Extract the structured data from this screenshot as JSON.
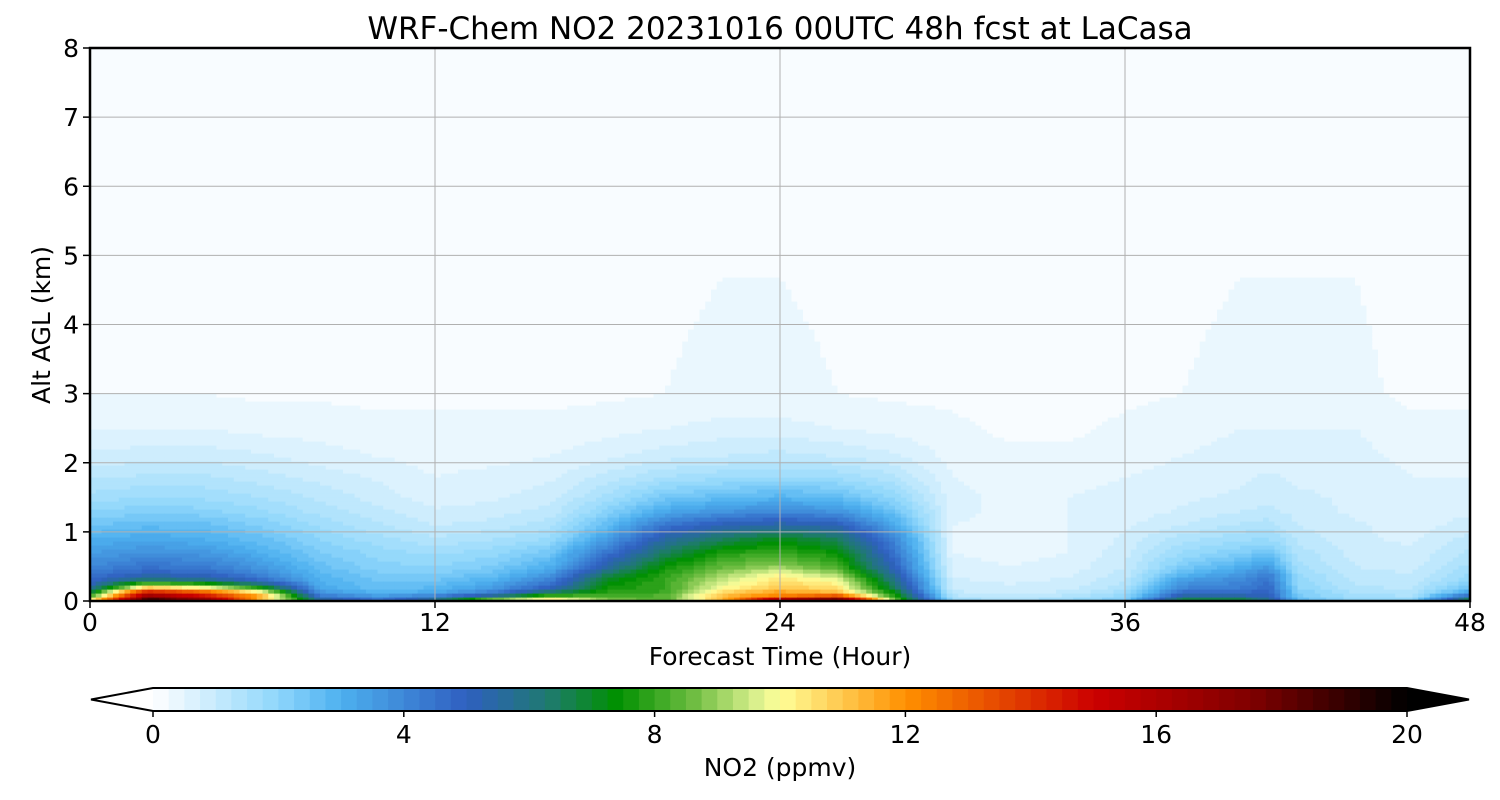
{
  "chart_data": {
    "type": "heatmap",
    "title": "WRF-Chem NO2  20231016 00UTC 48h fcst at LaCasa",
    "xlabel": "Forecast Time (Hour)",
    "ylabel": "Alt AGL (km)",
    "xlim": [
      0,
      48
    ],
    "ylim": [
      0,
      8
    ],
    "xticks": [
      0,
      12,
      24,
      36,
      48
    ],
    "yticks": [
      0,
      1,
      2,
      3,
      4,
      5,
      6,
      7,
      8
    ],
    "grid": true,
    "colorbar": {
      "label": "NO2  (ppmv)",
      "min": 0,
      "max": 20,
      "ticks": [
        0,
        4,
        8,
        12,
        16,
        20
      ],
      "extend": "both",
      "levels": 80,
      "colormap_stops": [
        {
          "v": 0,
          "c": "#ffffff"
        },
        {
          "v": 2,
          "c": "#8ed6fb"
        },
        {
          "v": 3,
          "c": "#4db0ef"
        },
        {
          "v": 5,
          "c": "#2f5fc0"
        },
        {
          "v": 6.3,
          "c": "#1f7a70"
        },
        {
          "v": 7.4,
          "c": "#009000"
        },
        {
          "v": 8.6,
          "c": "#6cbc40"
        },
        {
          "v": 9.6,
          "c": "#d8ef8c"
        },
        {
          "v": 10,
          "c": "#ffff99"
        },
        {
          "v": 12,
          "c": "#ff9000"
        },
        {
          "v": 15,
          "c": "#cc0000"
        },
        {
          "v": 17.5,
          "c": "#800000"
        },
        {
          "v": 20,
          "c": "#000000"
        }
      ]
    },
    "hours": [
      0,
      2,
      4,
      6,
      8,
      10,
      12,
      14,
      16,
      18,
      20,
      22,
      24,
      26,
      28,
      30,
      32,
      34,
      36,
      38,
      40,
      41,
      42,
      44,
      46,
      48
    ],
    "altitudes_km": [
      0.0,
      0.05,
      0.1,
      0.15,
      0.2,
      0.3,
      0.4,
      0.5,
      0.7,
      0.9,
      1.1,
      1.3,
      1.5,
      1.8,
      2.1,
      2.5,
      3.0,
      8.0
    ],
    "values": [
      [
        11.0,
        20.0,
        18.0,
        10.0,
        6.0,
        5.0,
        6.5,
        10.5,
        12.0,
        9.0,
        8.0,
        11.0,
        20.0,
        20.0,
        9.0,
        2.0,
        1.5,
        2.0,
        2.5,
        7.5,
        7.5,
        6.0,
        3.0,
        2.0,
        2.0,
        7.5
      ],
      [
        9.0,
        18.0,
        16.0,
        12.0,
        5.0,
        4.0,
        5.0,
        7.0,
        9.0,
        8.5,
        8.5,
        11.5,
        13.0,
        16.0,
        8.0,
        1.5,
        1.2,
        1.5,
        2.0,
        6.0,
        6.0,
        5.5,
        2.5,
        1.7,
        1.7,
        6.0
      ],
      [
        7.5,
        16.0,
        14.0,
        11.0,
        4.0,
        3.2,
        3.6,
        5.0,
        7.5,
        8.0,
        8.2,
        11.0,
        12.0,
        12.0,
        7.5,
        1.2,
        1.0,
        1.2,
        1.8,
        5.0,
        5.0,
        5.0,
        2.3,
        1.5,
        1.4,
        4.0
      ],
      [
        6.5,
        14.0,
        12.5,
        9.5,
        3.5,
        2.8,
        3.0,
        4.0,
        6.0,
        7.8,
        8.0,
        10.5,
        11.5,
        11.0,
        7.0,
        1.0,
        0.9,
        1.0,
        1.6,
        4.5,
        4.5,
        5.0,
        2.2,
        1.4,
        1.3,
        3.0
      ],
      [
        5.5,
        11.0,
        10.0,
        7.5,
        3.2,
        2.6,
        2.8,
        3.5,
        5.0,
        7.5,
        8.0,
        10.0,
        11.0,
        10.5,
        6.5,
        0.9,
        0.8,
        0.9,
        1.4,
        4.0,
        4.2,
        4.8,
        2.0,
        1.3,
        1.2,
        2.5
      ],
      [
        4.8,
        6.5,
        6.0,
        4.8,
        3.0,
        2.5,
        2.5,
        3.0,
        4.2,
        7.2,
        8.0,
        9.5,
        10.5,
        10.0,
        6.0,
        0.8,
        0.7,
        0.8,
        1.2,
        3.5,
        4.0,
        4.5,
        1.9,
        1.2,
        1.1,
        2.0
      ],
      [
        4.4,
        5.0,
        4.8,
        4.0,
        2.8,
        2.3,
        2.2,
        2.6,
        3.5,
        6.5,
        7.8,
        9.0,
        10.0,
        9.0,
        5.5,
        0.7,
        0.6,
        0.7,
        1.1,
        2.8,
        3.5,
        4.2,
        1.8,
        1.1,
        1.0,
        1.8
      ],
      [
        4.0,
        4.5,
        4.3,
        3.6,
        2.6,
        2.1,
        2.0,
        2.3,
        3.0,
        5.5,
        7.5,
        8.5,
        9.0,
        8.2,
        5.0,
        0.6,
        0.5,
        0.6,
        1.0,
        2.3,
        3.0,
        3.5,
        1.6,
        1.0,
        0.9,
        1.6
      ],
      [
        3.5,
        3.8,
        3.6,
        3.0,
        2.3,
        1.9,
        1.7,
        1.9,
        2.4,
        4.5,
        6.5,
        7.8,
        8.0,
        7.5,
        4.5,
        0.5,
        0.4,
        0.5,
        0.9,
        1.8,
        2.2,
        2.5,
        1.4,
        0.9,
        0.8,
        1.3
      ],
      [
        3.0,
        3.2,
        3.0,
        2.6,
        2.0,
        1.6,
        1.3,
        1.5,
        1.8,
        3.5,
        5.5,
        6.5,
        7.2,
        6.5,
        4.0,
        0.5,
        0.4,
        0.5,
        0.8,
        1.4,
        1.7,
        1.8,
        1.2,
        0.8,
        0.7,
        1.1
      ],
      [
        2.5,
        2.7,
        2.6,
        2.2,
        1.7,
        1.3,
        1.0,
        1.1,
        1.4,
        2.7,
        4.5,
        5.2,
        5.5,
        5.2,
        3.2,
        0.5,
        0.4,
        0.5,
        0.7,
        1.0,
        1.3,
        1.4,
        1.0,
        0.8,
        0.6,
        0.9
      ],
      [
        2.0,
        2.2,
        2.1,
        1.8,
        1.4,
        1.1,
        0.8,
        0.9,
        1.1,
        2.1,
        3.2,
        3.7,
        4.0,
        3.7,
        2.5,
        0.6,
        0.4,
        0.5,
        0.6,
        0.8,
        1.0,
        1.1,
        0.9,
        0.7,
        0.6,
        0.7
      ],
      [
        1.6,
        1.8,
        1.7,
        1.5,
        1.2,
        0.9,
        0.6,
        0.7,
        0.9,
        1.6,
        2.4,
        2.7,
        2.9,
        2.7,
        1.9,
        0.6,
        0.4,
        0.5,
        0.6,
        0.7,
        0.8,
        0.9,
        0.8,
        0.7,
        0.6,
        0.6
      ],
      [
        1.2,
        1.3,
        1.3,
        1.1,
        0.9,
        0.7,
        0.5,
        0.6,
        0.7,
        1.1,
        1.5,
        1.7,
        1.8,
        1.7,
        1.3,
        0.5,
        0.4,
        0.4,
        0.5,
        0.6,
        0.7,
        0.8,
        0.7,
        0.7,
        0.5,
        0.5
      ],
      [
        0.8,
        0.9,
        0.9,
        0.8,
        0.6,
        0.5,
        0.4,
        0.4,
        0.5,
        0.7,
        0.9,
        1.0,
        1.1,
        1.0,
        0.8,
        0.4,
        0.3,
        0.3,
        0.4,
        0.5,
        0.6,
        0.6,
        0.6,
        0.6,
        0.4,
        0.4
      ],
      [
        0.5,
        0.5,
        0.5,
        0.4,
        0.4,
        0.3,
        0.3,
        0.3,
        0.3,
        0.4,
        0.5,
        0.6,
        0.6,
        0.5,
        0.4,
        0.3,
        0.2,
        0.2,
        0.3,
        0.4,
        0.5,
        0.5,
        0.5,
        0.5,
        0.3,
        0.3
      ],
      [
        0.25,
        0.25,
        0.25,
        0.2,
        0.2,
        0.2,
        0.2,
        0.2,
        0.2,
        0.2,
        0.25,
        0.3,
        0.3,
        0.25,
        0.2,
        0.2,
        0.15,
        0.15,
        0.2,
        0.25,
        0.3,
        0.3,
        0.3,
        0.3,
        0.2,
        0.2
      ],
      [
        0.15,
        0.15,
        0.15,
        0.15,
        0.15,
        0.15,
        0.15,
        0.15,
        0.15,
        0.15,
        0.15,
        0.15,
        0.15,
        0.15,
        0.15,
        0.15,
        0.15,
        0.15,
        0.15,
        0.15,
        0.15,
        0.15,
        0.15,
        0.15,
        0.15,
        0.15
      ]
    ]
  }
}
